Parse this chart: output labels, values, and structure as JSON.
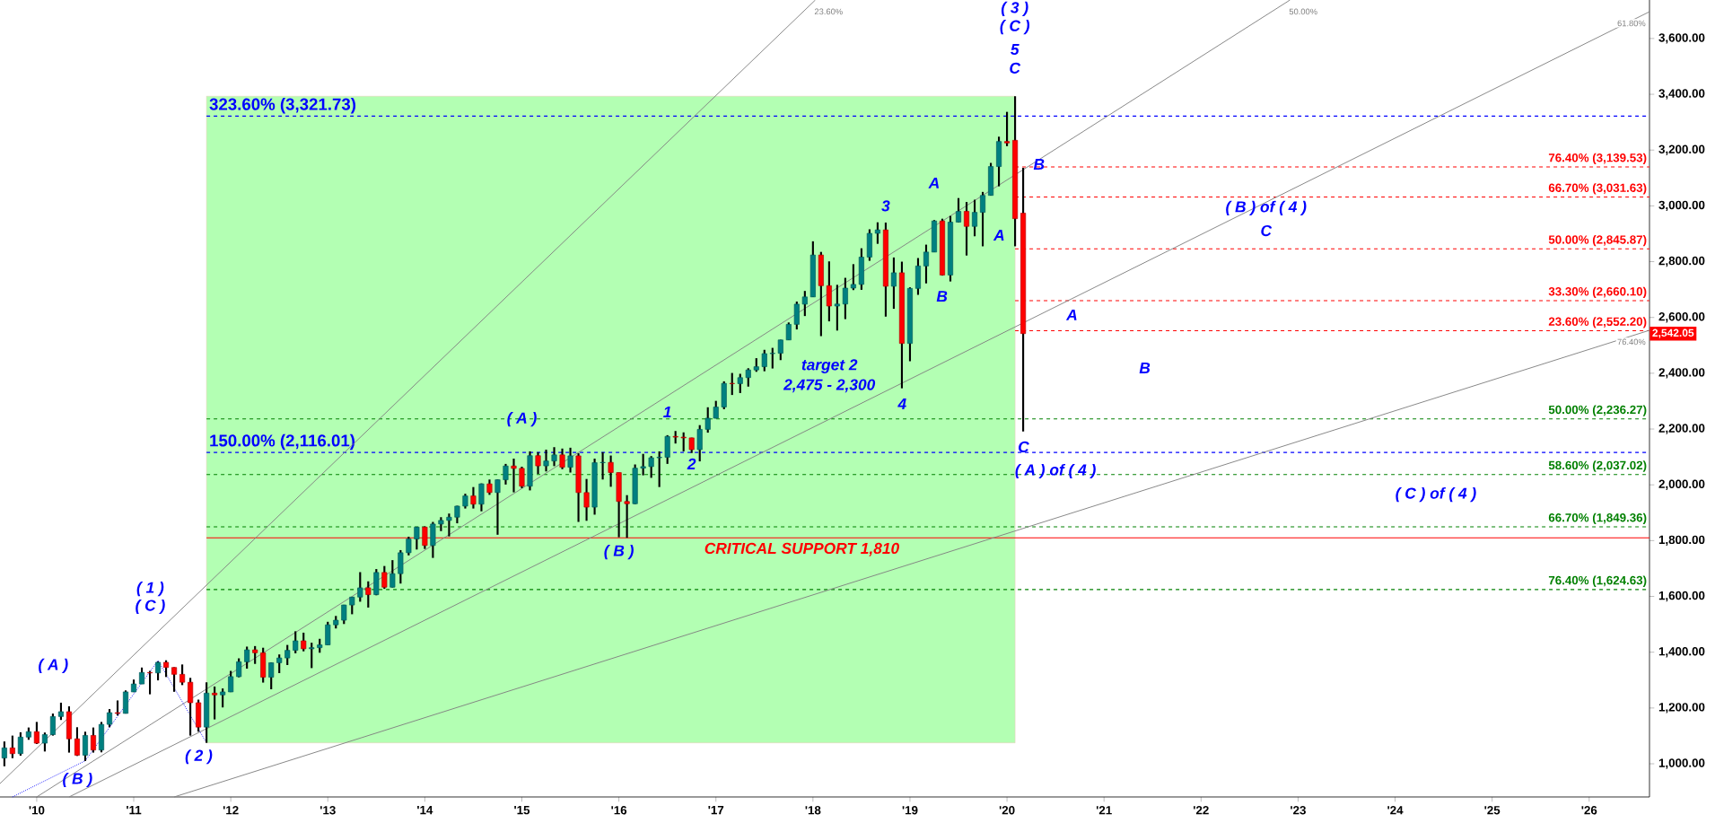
{
  "chart_data": {
    "type": "candlestick",
    "xlim": [
      "2009-08-15",
      "2026-08-15"
    ],
    "ylim": [
      881,
      3738
    ],
    "xticks": [
      {
        "value": "2010-01",
        "label": "'10"
      },
      {
        "value": "2011-01",
        "label": "'11"
      },
      {
        "value": "2012-01",
        "label": "'12"
      },
      {
        "value": "2013-01",
        "label": "'13"
      },
      {
        "value": "2014-01",
        "label": "'14"
      },
      {
        "value": "2015-01",
        "label": "'15"
      },
      {
        "value": "2016-01",
        "label": "'16"
      },
      {
        "value": "2017-01",
        "label": "'17"
      },
      {
        "value": "2018-01",
        "label": "'18"
      },
      {
        "value": "2019-01",
        "label": "'19"
      },
      {
        "value": "2020-01",
        "label": "'20"
      },
      {
        "value": "2021-01",
        "label": "'21"
      },
      {
        "value": "2022-01",
        "label": "'22"
      },
      {
        "value": "2023-01",
        "label": "'23"
      },
      {
        "value": "2024-01",
        "label": "'24"
      },
      {
        "value": "2025-01",
        "label": "'25"
      },
      {
        "value": "2026-01",
        "label": "'26"
      }
    ],
    "yticks": [
      {
        "value": 1000,
        "label": "1,000.00"
      },
      {
        "value": 1200,
        "label": "1,200.00"
      },
      {
        "value": 1400,
        "label": "1,400.00"
      },
      {
        "value": 1600,
        "label": "1,600.00"
      },
      {
        "value": 1800,
        "label": "1,800.00"
      },
      {
        "value": 2000,
        "label": "2,000.00"
      },
      {
        "value": 2200,
        "label": "2,200.00"
      },
      {
        "value": 2400,
        "label": "2,400.00"
      },
      {
        "value": 2600,
        "label": "2,600.00"
      },
      {
        "value": 2800,
        "label": "2,800.00"
      },
      {
        "value": 3000,
        "label": "3,000.00"
      },
      {
        "value": 3200,
        "label": "3,200.00"
      },
      {
        "value": 3400,
        "label": "3,400.00"
      },
      {
        "value": 3600,
        "label": "3,600.00"
      }
    ],
    "bands": [
      {
        "axis": "x",
        "from": "2011-10",
        "to": "2020-02",
        "color": "#b3ffb3"
      }
    ],
    "ref_lines": [
      {
        "axis": "y",
        "value": 3321.73,
        "label": "323.60% (3,321.73)",
        "color": "#0000ff",
        "line_style": "dashed"
      },
      {
        "axis": "y",
        "value": 2116.01,
        "label": "150.00% (2,116.01)",
        "color": "#0000ff",
        "line_style": "dashed"
      },
      {
        "axis": "y",
        "value": 3139.53,
        "label": "76.40% (3,139.53)",
        "color": "#ff0000",
        "line_style": "dashed"
      },
      {
        "axis": "y",
        "value": 3031.63,
        "label": "66.70% (3,031.63)",
        "color": "#ff0000",
        "line_style": "dashed"
      },
      {
        "axis": "y",
        "value": 2845.87,
        "label": "50.00% (2,845.87)",
        "color": "#ff0000",
        "line_style": "dashed"
      },
      {
        "axis": "y",
        "value": 2660.1,
        "label": "33.30% (2,660.10)",
        "color": "#ff0000",
        "line_style": "dashed"
      },
      {
        "axis": "y",
        "value": 2552.2,
        "label": "23.60% (2,552.20)",
        "color": "#ff0000",
        "line_style": "dashed"
      },
      {
        "axis": "y",
        "value": 2236.27,
        "label": "50.00% (2,236.27)",
        "color": "#008000",
        "line_style": "dashed"
      },
      {
        "axis": "y",
        "value": 2037.02,
        "label": "58.60% (2,037.02)",
        "color": "#008000",
        "line_style": "dashed"
      },
      {
        "axis": "y",
        "value": 1849.36,
        "label": "66.70% (1,849.36)",
        "color": "#008000",
        "line_style": "dashed"
      },
      {
        "axis": "y",
        "value": 1624.63,
        "label": "76.40% (1,624.63)",
        "color": "#008000",
        "line_style": "dashed"
      },
      {
        "axis": "y",
        "value": 1810,
        "label": "CRITICAL SUPPORT 1,810",
        "color": "#ff0000",
        "line_style": "solid"
      }
    ],
    "annotations": [
      "( A )",
      "( B )",
      "( 1 )",
      "( C )",
      "( 2 )",
      "( A )",
      "( B )",
      "1",
      "2",
      "3",
      "4",
      "A",
      "B",
      "( 3 )",
      "( C )",
      "5",
      "C",
      "A",
      "B",
      "A",
      "B",
      "( B ) of ( 4 )",
      "C",
      "C",
      "( A ) of ( 4 )",
      "( C ) of ( 4 )",
      "target 2",
      "2,475 - 2,300",
      "2,542.05"
    ],
    "series": [
      {
        "x": [
          "2009-09",
          "2009-10",
          "2009-11",
          "2009-12",
          "2010-01",
          "2010-02",
          "2010-03",
          "2010-04",
          "2010-05",
          "2010-06",
          "2010-07",
          "2010-08",
          "2010-09",
          "2010-10",
          "2010-11",
          "2010-12",
          "2011-01",
          "2011-02",
          "2011-03",
          "2011-04",
          "2011-05",
          "2011-06",
          "2011-07",
          "2011-08",
          "2011-09",
          "2011-10",
          "2011-11",
          "2011-12",
          "2012-01",
          "2012-02",
          "2012-03",
          "2012-04",
          "2012-05",
          "2012-06",
          "2012-07",
          "2012-08",
          "2012-09",
          "2012-10",
          "2012-11",
          "2012-12",
          "2013-01",
          "2013-02",
          "2013-03",
          "2013-04",
          "2013-05",
          "2013-06",
          "2013-07",
          "2013-08",
          "2013-09",
          "2013-10",
          "2013-11",
          "2013-12",
          "2014-01",
          "2014-02",
          "2014-03",
          "2014-04",
          "2014-05",
          "2014-06",
          "2014-07",
          "2014-08",
          "2014-09",
          "2014-10",
          "2014-11",
          "2014-12",
          "2015-01",
          "2015-02",
          "2015-03",
          "2015-04",
          "2015-05",
          "2015-06",
          "2015-07",
          "2015-08",
          "2015-09",
          "2015-10",
          "2015-11",
          "2015-12",
          "2016-01",
          "2016-02",
          "2016-03",
          "2016-04",
          "2016-05",
          "2016-06",
          "2016-07",
          "2016-08",
          "2016-09",
          "2016-10",
          "2016-11",
          "2016-12",
          "2017-01",
          "2017-02",
          "2017-03",
          "2017-04",
          "2017-05",
          "2017-06",
          "2017-07",
          "2017-08",
          "2017-09",
          "2017-10",
          "2017-11",
          "2017-12",
          "2018-01",
          "2018-02",
          "2018-03",
          "2018-04",
          "2018-05",
          "2018-06",
          "2018-07",
          "2018-08",
          "2018-09",
          "2018-10",
          "2018-11",
          "2018-12",
          "2019-01",
          "2019-02",
          "2019-03",
          "2019-04",
          "2019-05",
          "2019-06",
          "2019-07",
          "2019-08",
          "2019-09",
          "2019-10",
          "2019-11",
          "2019-12",
          "2020-01",
          "2020-02",
          "2020-03"
        ],
        "ohlc": [
          [
            1020.62,
            1080,
            991,
            1057.08
          ],
          [
            1057.08,
            1101,
            1020,
            1036.19
          ],
          [
            1036.19,
            1113,
            1029,
            1095.63
          ],
          [
            1095.63,
            1130,
            1086,
            1115.1
          ],
          [
            1115.1,
            1150,
            1071,
            1073.87
          ],
          [
            1073.87,
            1112,
            1044,
            1104.49
          ],
          [
            1104.49,
            1180,
            1101,
            1169.43
          ],
          [
            1169.43,
            1219,
            1157,
            1186.69
          ],
          [
            1186.69,
            1206,
            1040,
            1089.41
          ],
          [
            1089.41,
            1131,
            1028,
            1030.71
          ],
          [
            1030.71,
            1115,
            1010,
            1101.6
          ],
          [
            1101.6,
            1130,
            1040,
            1049.33
          ],
          [
            1049.33,
            1150,
            1041,
            1141.2
          ],
          [
            1141.2,
            1196,
            1131,
            1183.26
          ],
          [
            1183.26,
            1227,
            1173,
            1180.55
          ],
          [
            1180.55,
            1263,
            1180,
            1257.64
          ],
          [
            1257.64,
            1302,
            1257,
            1286.12
          ],
          [
            1286.12,
            1345,
            1286,
            1327.22
          ],
          [
            1327.22,
            1333,
            1249,
            1325.83
          ],
          [
            1325.83,
            1367,
            1299,
            1363.61
          ],
          [
            1363.61,
            1371,
            1311,
            1345.2
          ],
          [
            1345.2,
            1346,
            1258,
            1320.64
          ],
          [
            1320.64,
            1356,
            1282,
            1292.28
          ],
          [
            1292.28,
            1308,
            1101,
            1218.89
          ],
          [
            1218.89,
            1230,
            1115,
            1131.42
          ],
          [
            1131.42,
            1292,
            1075,
            1253.3
          ],
          [
            1253.3,
            1277,
            1159,
            1246.96
          ],
          [
            1246.96,
            1270,
            1202,
            1257.6
          ],
          [
            1257.6,
            1333,
            1257,
            1312.41
          ],
          [
            1312.41,
            1378,
            1310,
            1365.68
          ],
          [
            1365.68,
            1420,
            1341,
            1408.47
          ],
          [
            1408.47,
            1422,
            1358,
            1397.91
          ],
          [
            1397.91,
            1416,
            1291,
            1310.33
          ],
          [
            1310.33,
            1363,
            1267,
            1362.16
          ],
          [
            1362.16,
            1392,
            1325,
            1379.32
          ],
          [
            1379.32,
            1426,
            1354,
            1406.58
          ],
          [
            1406.58,
            1475,
            1396,
            1440.67
          ],
          [
            1440.67,
            1470,
            1403,
            1412.16
          ],
          [
            1412.16,
            1434,
            1343,
            1416.18
          ],
          [
            1416.18,
            1448,
            1398,
            1426.19
          ],
          [
            1426.19,
            1509,
            1426,
            1498.11
          ],
          [
            1498.11,
            1530,
            1485,
            1514.68
          ],
          [
            1514.68,
            1570,
            1501,
            1569.19
          ],
          [
            1569.19,
            1598,
            1536,
            1597.57
          ],
          [
            1597.57,
            1687,
            1581,
            1630.74
          ],
          [
            1630.74,
            1654,
            1560,
            1606.28
          ],
          [
            1606.28,
            1698,
            1604,
            1685.73
          ],
          [
            1685.73,
            1709,
            1627,
            1632.97
          ],
          [
            1632.97,
            1730,
            1632,
            1681.55
          ],
          [
            1681.55,
            1766,
            1646,
            1756.54
          ],
          [
            1756.54,
            1814,
            1747,
            1805.81
          ],
          [
            1805.81,
            1849,
            1768,
            1848.36
          ],
          [
            1848.36,
            1851,
            1770,
            1782.59
          ],
          [
            1782.59,
            1867,
            1738,
            1859.45
          ],
          [
            1859.45,
            1884,
            1834,
            1872.34
          ],
          [
            1872.34,
            1897,
            1815,
            1883.95
          ],
          [
            1883.95,
            1925,
            1862,
            1923.57
          ],
          [
            1923.57,
            1968,
            1915,
            1960.23
          ],
          [
            1960.23,
            1992,
            1915,
            1930.67
          ],
          [
            1930.67,
            2005,
            1905,
            2003.37
          ],
          [
            2003.37,
            2019,
            1964,
            1972.29
          ],
          [
            1972.29,
            2019,
            1821,
            2018.05
          ],
          [
            2018.05,
            2075,
            2001,
            2067.56
          ],
          [
            2067.56,
            2094,
            1973,
            2058.9
          ],
          [
            2058.9,
            2065,
            1988,
            1994.99
          ],
          [
            1994.99,
            2120,
            1980,
            2104.5
          ],
          [
            2104.5,
            2117,
            2039,
            2067.89
          ],
          [
            2067.89,
            2126,
            2048,
            2085.51
          ],
          [
            2085.51,
            2135,
            2067,
            2107.39
          ],
          [
            2107.39,
            2130,
            2056,
            2063.11
          ],
          [
            2063.11,
            2133,
            2044,
            2103.84
          ],
          [
            2103.84,
            2113,
            1867,
            1972.18
          ],
          [
            1972.18,
            2021,
            1871,
            1920.03
          ],
          [
            1920.03,
            2094,
            1893,
            2079.36
          ],
          [
            2079.36,
            2117,
            2019,
            2080.41
          ],
          [
            2080.41,
            2105,
            1993,
            2043.94
          ],
          [
            2043.94,
            2044,
            1812,
            1940.24
          ],
          [
            1940.24,
            1963,
            1810,
            1932.23
          ],
          [
            1932.23,
            2073,
            1931,
            2059.74
          ],
          [
            2059.74,
            2111,
            2034,
            2065.3
          ],
          [
            2065.3,
            2103,
            2025,
            2096.95
          ],
          [
            2096.95,
            2120,
            1992,
            2098.86
          ],
          [
            2098.86,
            2178,
            2075,
            2173.6
          ],
          [
            2173.6,
            2193,
            2148,
            2170.95
          ],
          [
            2170.95,
            2188,
            2120,
            2168.27
          ],
          [
            2168.27,
            2169,
            2114,
            2126.15
          ],
          [
            2126.15,
            2214,
            2084,
            2198.81
          ],
          [
            2198.81,
            2278,
            2187,
            2238.83
          ],
          [
            2238.83,
            2301,
            2238,
            2278.87
          ],
          [
            2278.87,
            2371,
            2271,
            2363.64
          ],
          [
            2363.64,
            2401,
            2322,
            2362.72
          ],
          [
            2362.72,
            2398,
            2329,
            2384.2
          ],
          [
            2384.2,
            2418,
            2352,
            2411.8
          ],
          [
            2411.8,
            2454,
            2405,
            2423.41
          ],
          [
            2423.41,
            2484,
            2407,
            2470.3
          ],
          [
            2470.3,
            2491,
            2417,
            2471.65
          ],
          [
            2471.65,
            2520,
            2447,
            2519.36
          ],
          [
            2519.36,
            2582,
            2519,
            2575.26
          ],
          [
            2575.26,
            2657,
            2557,
            2647.58
          ],
          [
            2647.58,
            2695,
            2605,
            2673.61
          ],
          [
            2673.61,
            2873,
            2673,
            2823.81
          ],
          [
            2823.81,
            2835,
            2533,
            2713.83
          ],
          [
            2713.83,
            2801,
            2586,
            2640.87
          ],
          [
            2640.87,
            2717,
            2553,
            2648.05
          ],
          [
            2648.05,
            2742,
            2594,
            2705.27
          ],
          [
            2705.27,
            2791,
            2698,
            2718.37
          ],
          [
            2718.37,
            2848,
            2699,
            2816.29
          ],
          [
            2816.29,
            2916,
            2803,
            2901.52
          ],
          [
            2901.52,
            2941,
            2864,
            2913.98
          ],
          [
            2913.98,
            2940,
            2603,
            2711.74
          ],
          [
            2711.74,
            2815,
            2631,
            2760.17
          ],
          [
            2760.17,
            2800,
            2346,
            2506.85
          ],
          [
            2506.85,
            2708,
            2443,
            2704.1
          ],
          [
            2704.1,
            2813,
            2681,
            2784.49
          ],
          [
            2784.49,
            2861,
            2722,
            2834.4
          ],
          [
            2834.4,
            2949,
            2834,
            2945.83
          ],
          [
            2945.83,
            2954,
            2750,
            2752.06
          ],
          [
            2752.06,
            2964,
            2729,
            2941.76
          ],
          [
            2941.76,
            3028,
            2941,
            2980.38
          ],
          [
            2980.38,
            3014,
            2822,
            2926.46
          ],
          [
            2926.46,
            3022,
            2891,
            2976.74
          ],
          [
            2976.74,
            3050,
            2855,
            3037.56
          ],
          [
            3037.56,
            3154,
            3037,
            3140.98
          ],
          [
            3140.98,
            3248,
            3070,
            3230.78
          ],
          [
            3230.78,
            3337,
            3214,
            3225.52
          ],
          [
            3235,
            3393,
            2855,
            2954.22
          ],
          [
            2974,
            3136,
            2191,
            2542.05
          ]
        ],
        "colors": [
          "#008080",
          "#ff0000",
          "#008080",
          "#008080",
          "#ff0000",
          "#008080",
          "#008080",
          "#008080",
          "#ff0000",
          "#ff0000",
          "#008080",
          "#ff0000",
          "#008080",
          "#008080",
          "#ff0000",
          "#008080",
          "#008080",
          "#008080",
          "#ff0000",
          "#008080",
          "#ff0000",
          "#ff0000",
          "#ff0000",
          "#ff0000",
          "#ff0000",
          "#008080",
          "#ff0000",
          "#008080",
          "#008080",
          "#008080",
          "#008080",
          "#ff0000",
          "#ff0000",
          "#008080",
          "#008080",
          "#008080",
          "#008080",
          "#ff0000",
          "#008080",
          "#008080",
          "#008080",
          "#008080",
          "#008080",
          "#008080",
          "#008080",
          "#ff0000",
          "#008080",
          "#ff0000",
          "#008080",
          "#008080",
          "#008080",
          "#008080",
          "#ff0000",
          "#008080",
          "#008080",
          "#008080",
          "#008080",
          "#008080",
          "#ff0000",
          "#008080",
          "#ff0000",
          "#008080",
          "#008080",
          "#ff0000",
          "#ff0000",
          "#008080",
          "#ff0000",
          "#008080",
          "#008080",
          "#ff0000",
          "#008080",
          "#ff0000",
          "#ff0000",
          "#008080",
          "#008080",
          "#ff0000",
          "#ff0000",
          "#ff0000",
          "#008080",
          "#008080",
          "#008080",
          "#008080",
          "#008080",
          "#ff0000",
          "#ff0000",
          "#ff0000",
          "#008080",
          "#008080",
          "#008080",
          "#008080",
          "#ff0000",
          "#008080",
          "#008080",
          "#008080",
          "#008080",
          "#008080",
          "#008080",
          "#008080",
          "#008080",
          "#008080",
          "#008080",
          "#ff0000",
          "#ff0000",
          "#008080",
          "#008080",
          "#008080",
          "#008080",
          "#008080",
          "#008080",
          "#ff0000",
          "#008080",
          "#ff0000",
          "#008080",
          "#008080",
          "#008080",
          "#008080",
          "#ff0000",
          "#008080",
          "#008080",
          "#ff0000",
          "#008080",
          "#008080",
          "#008080",
          "#008080",
          "#ff0000",
          "#ff0000",
          "#ff0000"
        ]
      },
      {
        "type": "line",
        "name": "23.60%",
        "color": "#808080",
        "x": [
          "2009-08-15",
          "2018-01-10"
        ],
        "values": [
          929,
          3738
        ]
      },
      {
        "type": "line",
        "name": "50.00%",
        "color": "#808080",
        "x": [
          "2010-01",
          "2022-12"
        ],
        "values": [
          881,
          3738
        ]
      },
      {
        "type": "line",
        "name": "61.80%",
        "color": "#808080",
        "x": [
          "2010-05",
          "2026-08-15"
        ],
        "values": [
          881,
          3696
        ]
      },
      {
        "type": "line",
        "name": "76.40%",
        "color": "#808080",
        "x": [
          "2011-06",
          "2026-08-15"
        ],
        "values": [
          881,
          2554
        ]
      },
      {
        "type": "line",
        "color": "#0000ff",
        "line_style": "dotted",
        "x": [
          "2009-10",
          "2010-07",
          "2011-04",
          "2011-10"
        ],
        "values": [
          881,
          1011,
          1370,
          1075
        ]
      }
    ]
  }
}
